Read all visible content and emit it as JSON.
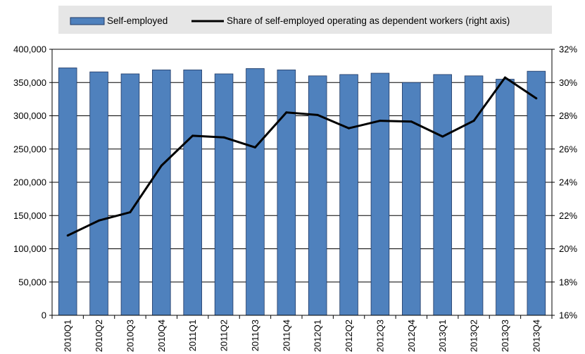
{
  "chart_data": {
    "type": "bar",
    "categories": [
      "2010Q1",
      "2010Q2",
      "2010Q3",
      "2010Q4",
      "2011Q1",
      "2011Q2",
      "2011Q3",
      "2011Q4",
      "2012Q1",
      "2012Q2",
      "2012Q3",
      "2012Q4",
      "2013Q1",
      "2013Q2",
      "2013Q3",
      "2013Q4"
    ],
    "series": [
      {
        "name": "Self-employed",
        "type": "bar",
        "axis": "left",
        "color": "#4f81bd",
        "values": [
          372000,
          366000,
          363000,
          369000,
          369000,
          363000,
          371000,
          369000,
          360000,
          362000,
          364000,
          350000,
          362000,
          360000,
          355000,
          367000
        ]
      },
      {
        "name": "Share of self-employed operating as dependent workers (right axis)",
        "type": "line",
        "axis": "right",
        "color": "#000000",
        "values": [
          20.8,
          21.7,
          22.2,
          25.0,
          26.8,
          26.7,
          26.1,
          28.2,
          28.05,
          27.25,
          27.7,
          27.65,
          26.75,
          27.7,
          30.3,
          29.05
        ]
      }
    ],
    "y_left": {
      "min": 0,
      "max": 400000,
      "step": 50000,
      "tick_labels": [
        "0",
        "50,000",
        "100,000",
        "150,000",
        "200,000",
        "250,000",
        "300,000",
        "350,000",
        "400,000"
      ]
    },
    "y_right": {
      "min": 16,
      "max": 32,
      "step": 2,
      "tick_labels": [
        "16%",
        "18%",
        "20%",
        "22%",
        "24%",
        "26%",
        "28%",
        "30%",
        "32%"
      ]
    },
    "legend_position": "top",
    "legend_background": "#e6e6e6",
    "grid": true
  }
}
